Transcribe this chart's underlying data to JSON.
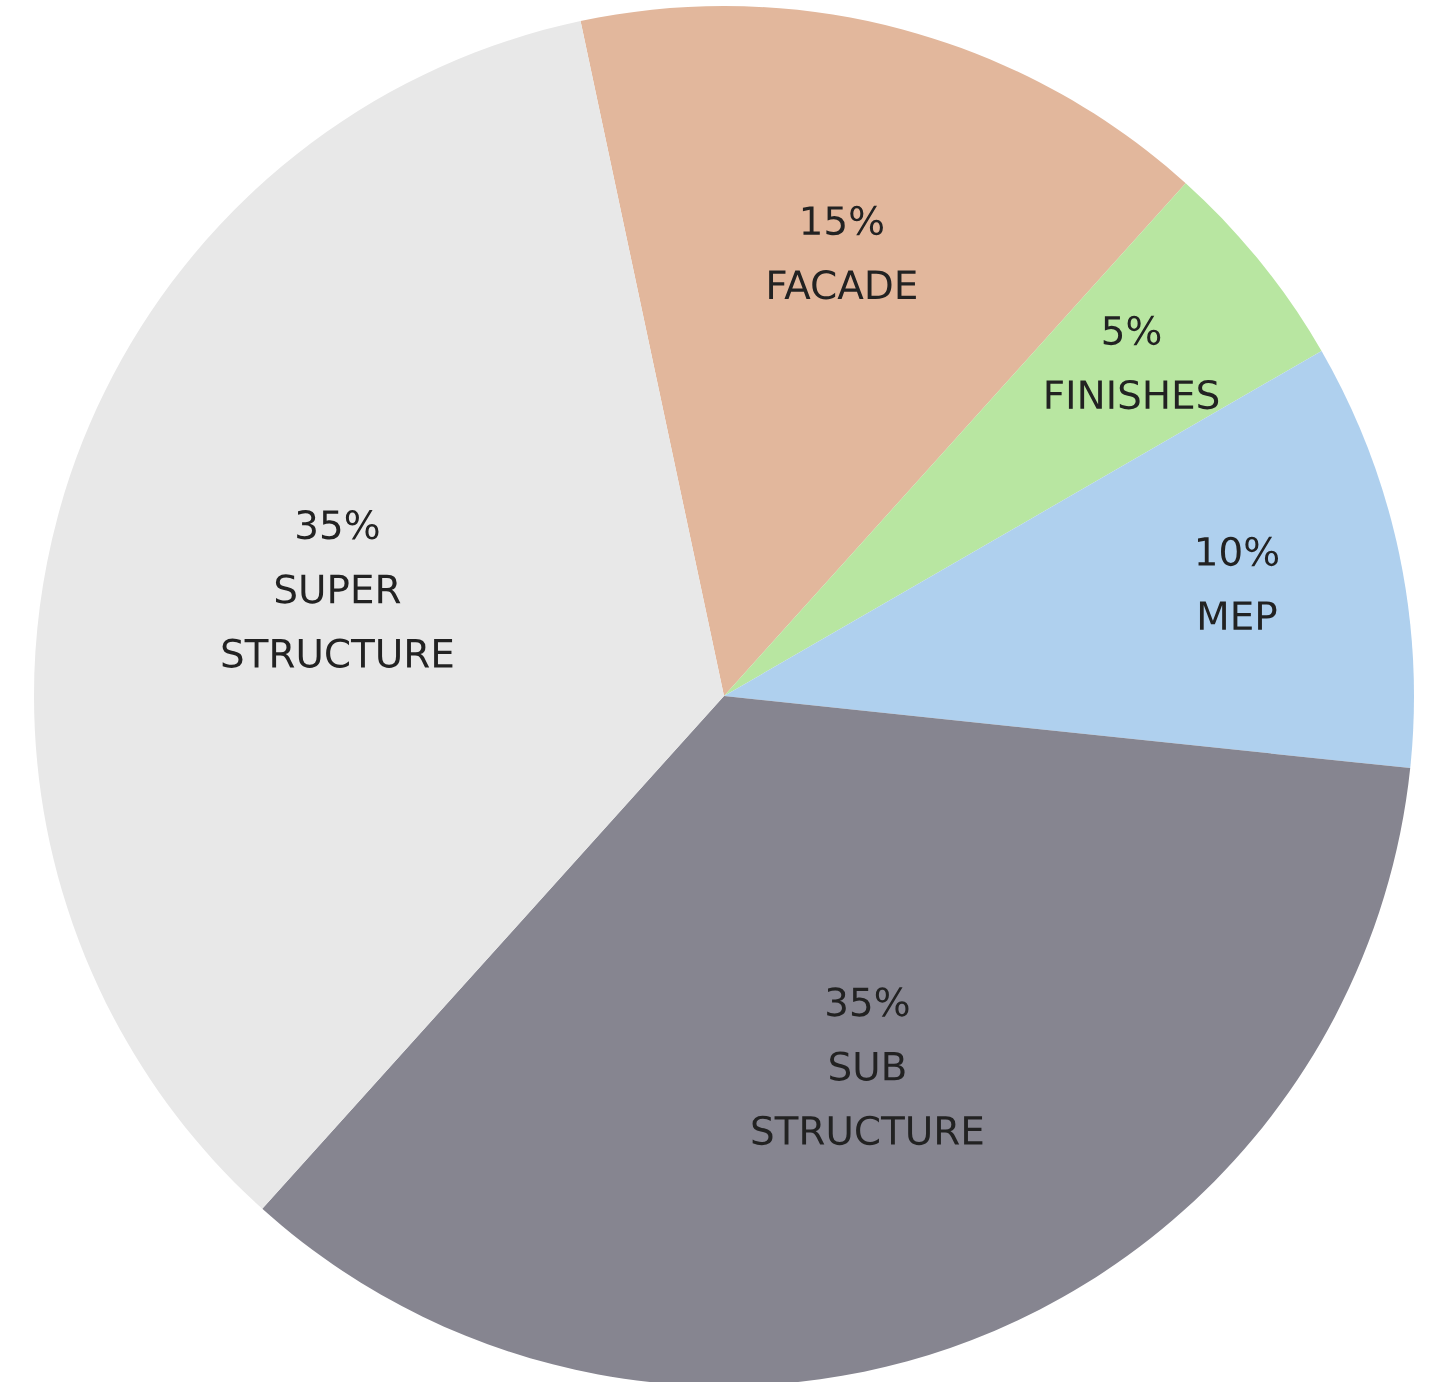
{
  "chart_data": {
    "type": "pie",
    "categories": [
      "FACADE",
      "FINISHES",
      "MEP",
      "SUB\nSTRUCTURE",
      "SUPER\nSTRUCTURE"
    ],
    "values": [
      15,
      5,
      10,
      35,
      35
    ],
    "value_labels": [
      "15%",
      "5%",
      "10%",
      "35%",
      "35%"
    ],
    "colors": [
      "#e2b79c",
      "#b8e6a1",
      "#afd0ee",
      "#868590",
      "#e8e8e8"
    ]
  }
}
